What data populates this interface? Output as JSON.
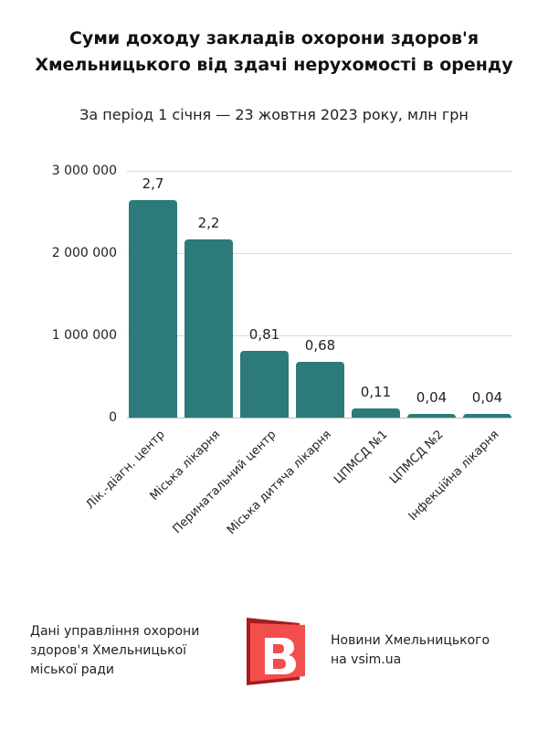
{
  "header": {
    "title_line1": "Суми доходу закладів охорони здоров'я",
    "title_line2": "Хмельницького від здачі нерухомості в оренду",
    "subtitle": "За період 1 січня — 23 жовтня 2023 року, млн грн"
  },
  "chart_data": {
    "type": "bar",
    "title": "Суми доходу закладів охорони здоров'я Хмельницького від здачі нерухомості в оренду",
    "subtitle": "За період 1 січня — 23 жовтня 2023 року, млн грн",
    "xlabel": "",
    "ylabel": "",
    "ylim": [
      0,
      3000000
    ],
    "yticks": [
      {
        "value": 3000000,
        "label": "3 000 000"
      },
      {
        "value": 2000000,
        "label": "2 000 000"
      },
      {
        "value": 1000000,
        "label": "1 000 000"
      },
      {
        "value": 0,
        "label": "0"
      }
    ],
    "grid": true,
    "legend": null,
    "color": "#2c7a7a",
    "categories": [
      "Лік.-діагн. центр",
      "Міська лікарня",
      "Перинатальний центр",
      "Міська дитяча лікарня",
      "ЦПМСД №1",
      "ЦПМСД №2",
      "Інфекційна лікарня"
    ],
    "values": [
      2650000,
      2170000,
      810000,
      680000,
      110000,
      40000,
      40000
    ],
    "data_labels": [
      "2,7",
      "2,2",
      "0,81",
      "0,68",
      "0,11",
      "0,04",
      "0,04"
    ]
  },
  "footer": {
    "source_line1": "Дані управління охорони",
    "source_line2": "здоров'я Хмельницької",
    "source_line3": "міської ради",
    "brand_line1": "Новини Хмельницького",
    "brand_line2": "на vsim.ua",
    "logo_letter": "B",
    "logo_color": "#f24e4e",
    "logo_shadow_color": "#a61c1c"
  }
}
